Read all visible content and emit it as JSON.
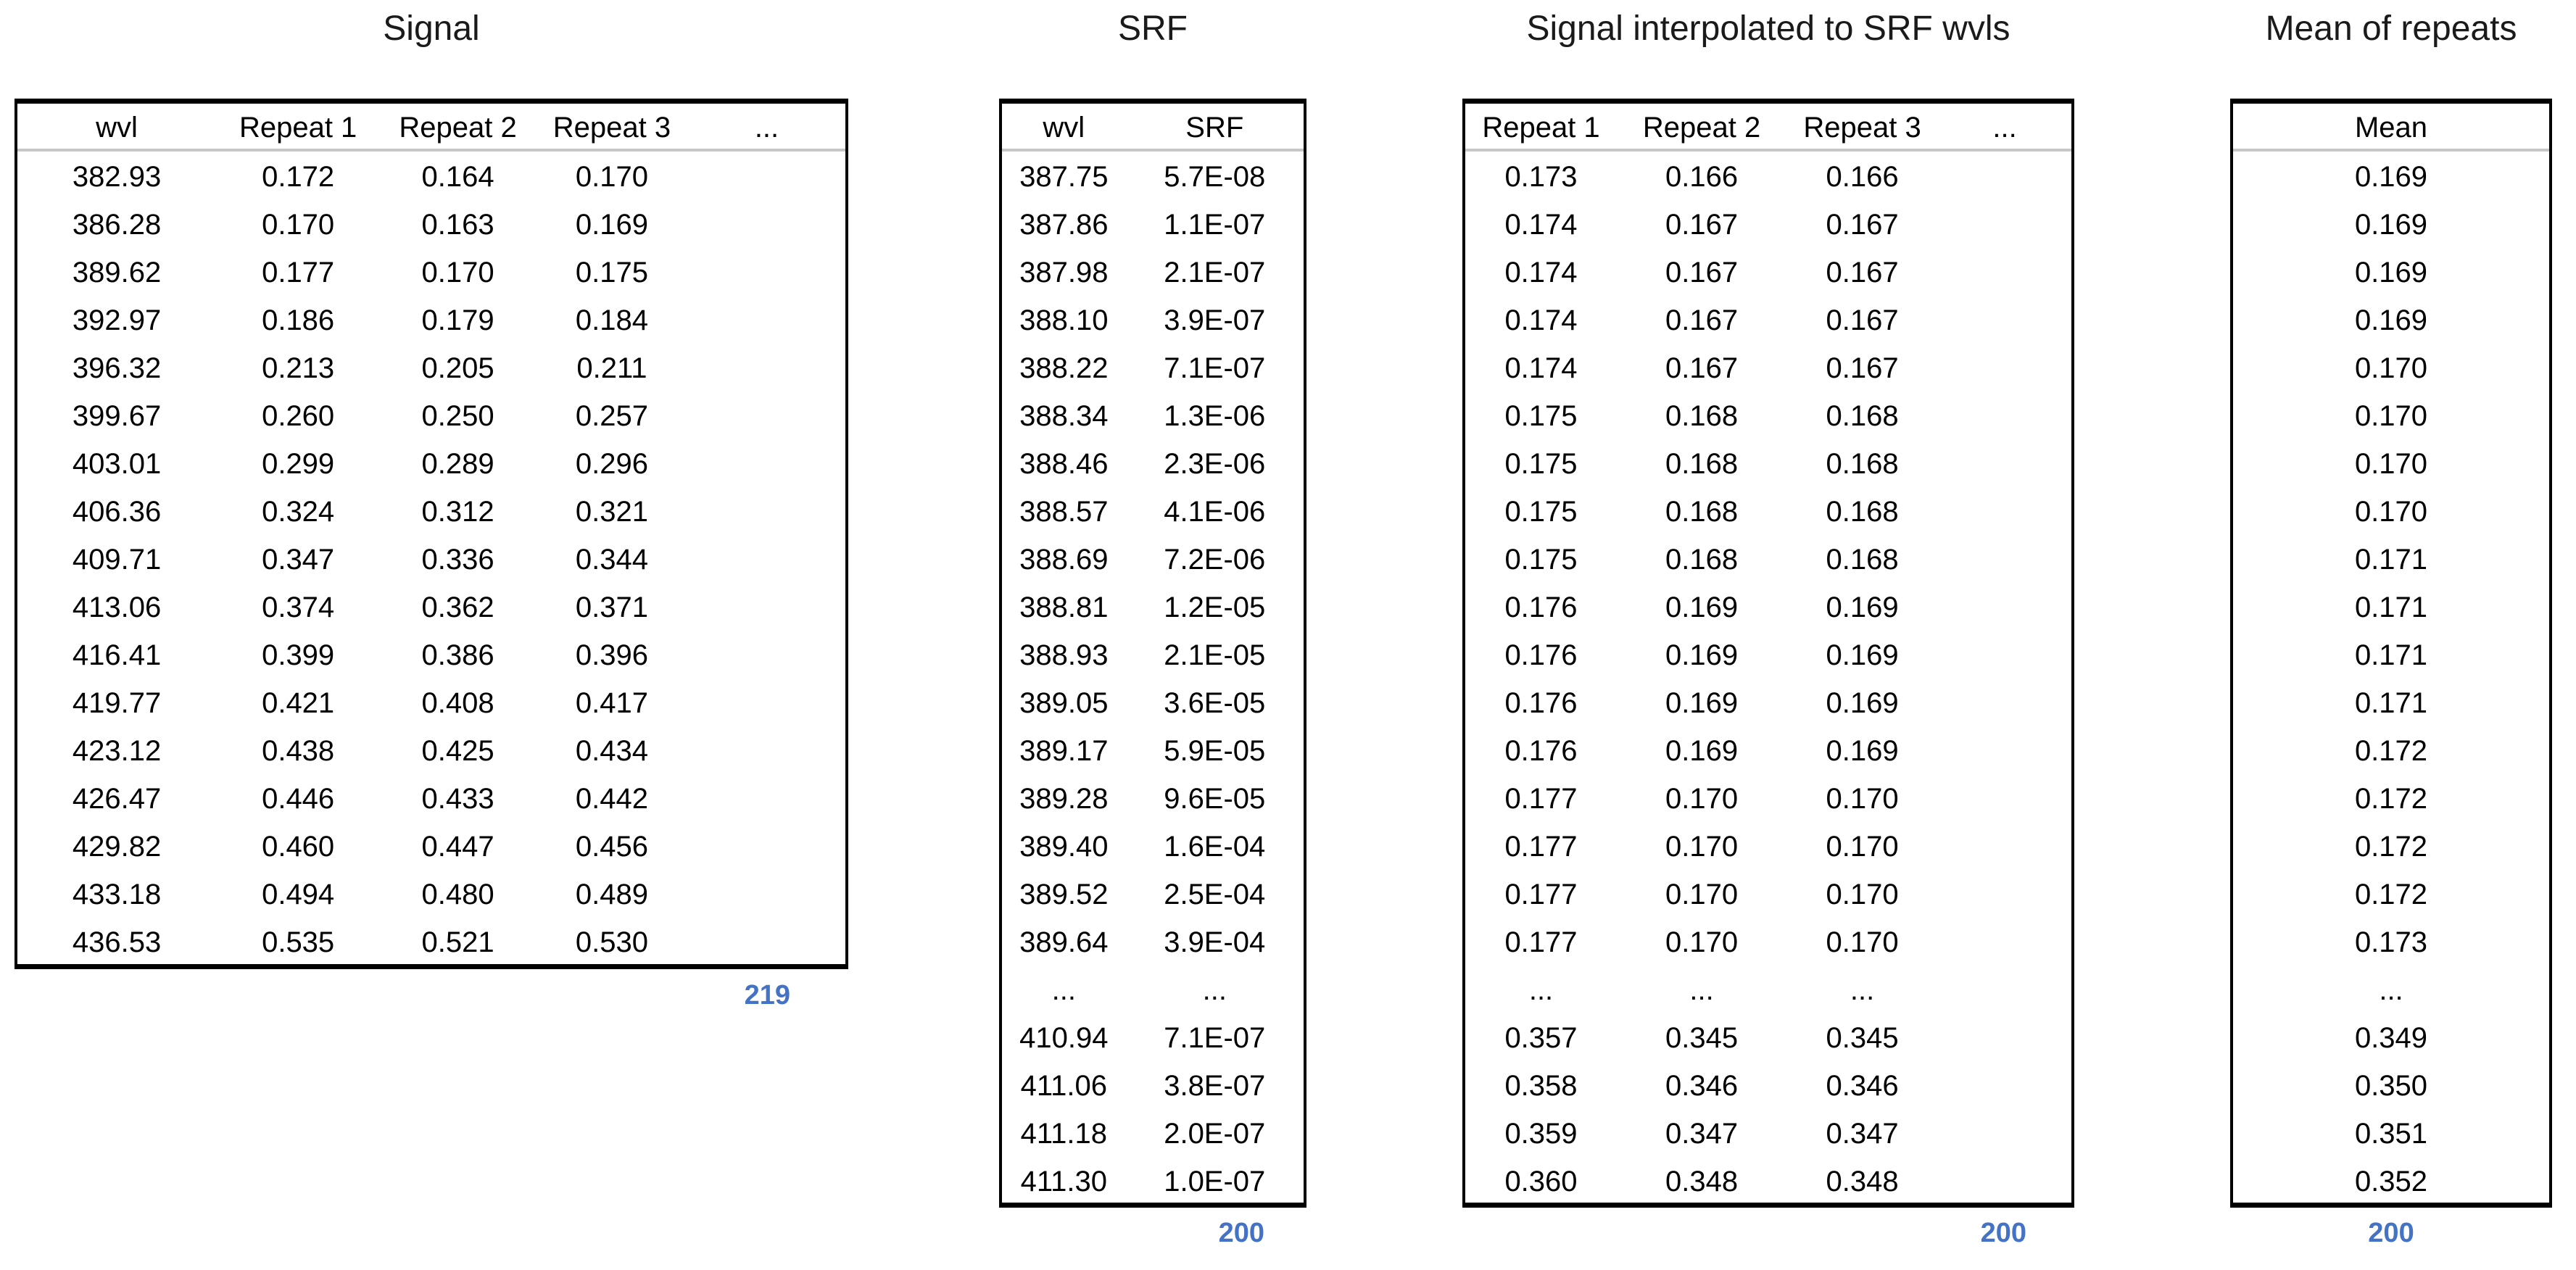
{
  "accent_color": "#4472C4",
  "tables": [
    {
      "name": "signal",
      "title": "Signal",
      "headers": [
        "wvl",
        "Repeat 1",
        "Repeat 2",
        "Repeat 3",
        "..."
      ],
      "rows": [
        [
          "382.93",
          "0.172",
          "0.164",
          "0.170"
        ],
        [
          "386.28",
          "0.170",
          "0.163",
          "0.169"
        ],
        [
          "389.62",
          "0.177",
          "0.170",
          "0.175"
        ],
        [
          "392.97",
          "0.186",
          "0.179",
          "0.184"
        ],
        [
          "396.32",
          "0.213",
          "0.205",
          "0.211"
        ],
        [
          "399.67",
          "0.260",
          "0.250",
          "0.257"
        ],
        [
          "403.01",
          "0.299",
          "0.289",
          "0.296"
        ],
        [
          "406.36",
          "0.324",
          "0.312",
          "0.321"
        ],
        [
          "409.71",
          "0.347",
          "0.336",
          "0.344"
        ],
        [
          "413.06",
          "0.374",
          "0.362",
          "0.371"
        ],
        [
          "416.41",
          "0.399",
          "0.386",
          "0.396"
        ],
        [
          "419.77",
          "0.421",
          "0.408",
          "0.417"
        ],
        [
          "423.12",
          "0.438",
          "0.425",
          "0.434"
        ],
        [
          "426.47",
          "0.446",
          "0.433",
          "0.442"
        ],
        [
          "429.82",
          "0.460",
          "0.447",
          "0.456"
        ],
        [
          "433.18",
          "0.494",
          "0.480",
          "0.489"
        ],
        [
          "436.53",
          "0.535",
          "0.521",
          "0.530"
        ]
      ],
      "count": "219"
    },
    {
      "name": "srf",
      "title": "SRF",
      "headers": [
        "wvl",
        "SRF"
      ],
      "rows": [
        [
          "387.75",
          "5.7E-08"
        ],
        [
          "387.86",
          "1.1E-07"
        ],
        [
          "387.98",
          "2.1E-07"
        ],
        [
          "388.10",
          "3.9E-07"
        ],
        [
          "388.22",
          "7.1E-07"
        ],
        [
          "388.34",
          "1.3E-06"
        ],
        [
          "388.46",
          "2.3E-06"
        ],
        [
          "388.57",
          "4.1E-06"
        ],
        [
          "388.69",
          "7.2E-06"
        ],
        [
          "388.81",
          "1.2E-05"
        ],
        [
          "388.93",
          "2.1E-05"
        ],
        [
          "389.05",
          "3.6E-05"
        ],
        [
          "389.17",
          "5.9E-05"
        ],
        [
          "389.28",
          "9.6E-05"
        ],
        [
          "389.40",
          "1.6E-04"
        ],
        [
          "389.52",
          "2.5E-04"
        ],
        [
          "389.64",
          "3.9E-04"
        ],
        [
          "...",
          "..."
        ],
        [
          "410.94",
          "7.1E-07"
        ],
        [
          "411.06",
          "3.8E-07"
        ],
        [
          "411.18",
          "2.0E-07"
        ],
        [
          "411.30",
          "1.0E-07"
        ]
      ],
      "count": "200"
    },
    {
      "name": "signal-interpolated",
      "title": "Signal interpolated to SRF wvls",
      "headers": [
        "Repeat 1",
        "Repeat 2",
        "Repeat 3",
        "..."
      ],
      "rows": [
        [
          "0.173",
          "0.166",
          "0.166"
        ],
        [
          "0.174",
          "0.167",
          "0.167"
        ],
        [
          "0.174",
          "0.167",
          "0.167"
        ],
        [
          "0.174",
          "0.167",
          "0.167"
        ],
        [
          "0.174",
          "0.167",
          "0.167"
        ],
        [
          "0.175",
          "0.168",
          "0.168"
        ],
        [
          "0.175",
          "0.168",
          "0.168"
        ],
        [
          "0.175",
          "0.168",
          "0.168"
        ],
        [
          "0.175",
          "0.168",
          "0.168"
        ],
        [
          "0.176",
          "0.169",
          "0.169"
        ],
        [
          "0.176",
          "0.169",
          "0.169"
        ],
        [
          "0.176",
          "0.169",
          "0.169"
        ],
        [
          "0.176",
          "0.169",
          "0.169"
        ],
        [
          "0.177",
          "0.170",
          "0.170"
        ],
        [
          "0.177",
          "0.170",
          "0.170"
        ],
        [
          "0.177",
          "0.170",
          "0.170"
        ],
        [
          "0.177",
          "0.170",
          "0.170"
        ],
        [
          "...",
          "...",
          "..."
        ],
        [
          "0.357",
          "0.345",
          "0.345"
        ],
        [
          "0.358",
          "0.346",
          "0.346"
        ],
        [
          "0.359",
          "0.347",
          "0.347"
        ],
        [
          "0.360",
          "0.348",
          "0.348"
        ]
      ],
      "count": "200"
    },
    {
      "name": "mean-of-repeats",
      "title": "Mean of repeats",
      "headers": [
        "Mean"
      ],
      "rows": [
        [
          "0.169"
        ],
        [
          "0.169"
        ],
        [
          "0.169"
        ],
        [
          "0.169"
        ],
        [
          "0.170"
        ],
        [
          "0.170"
        ],
        [
          "0.170"
        ],
        [
          "0.170"
        ],
        [
          "0.171"
        ],
        [
          "0.171"
        ],
        [
          "0.171"
        ],
        [
          "0.171"
        ],
        [
          "0.172"
        ],
        [
          "0.172"
        ],
        [
          "0.172"
        ],
        [
          "0.172"
        ],
        [
          "0.173"
        ],
        [
          "..."
        ],
        [
          "0.349"
        ],
        [
          "0.350"
        ],
        [
          "0.351"
        ],
        [
          "0.352"
        ]
      ],
      "count": "200"
    }
  ]
}
